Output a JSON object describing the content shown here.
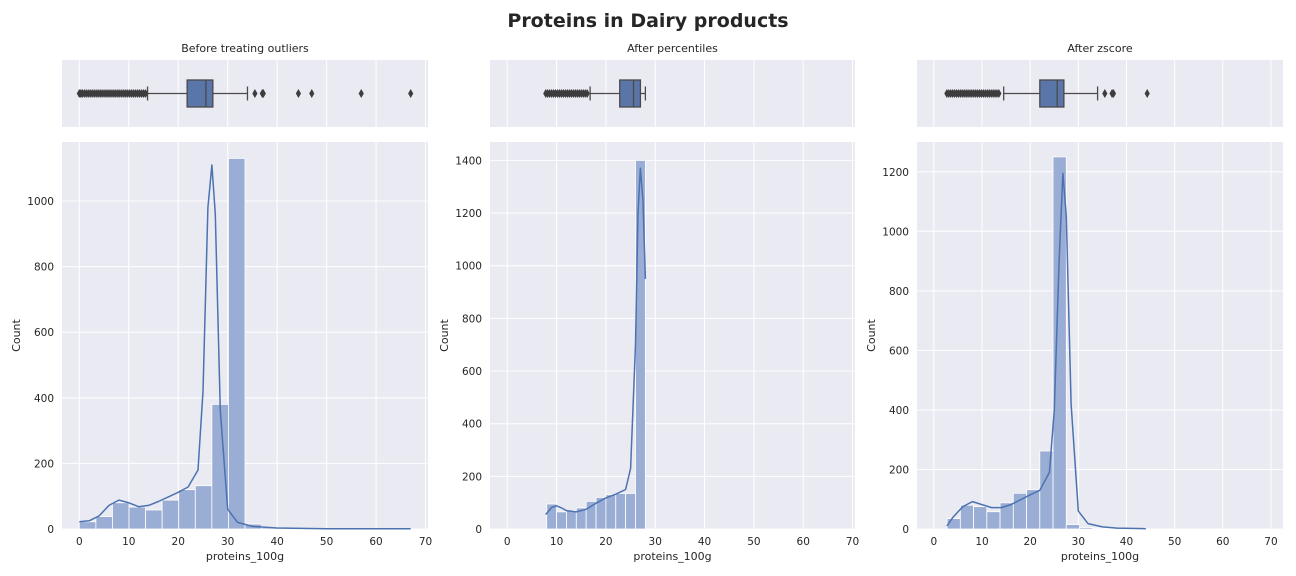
{
  "figure_title": "Proteins in Dairy products",
  "colors": {
    "panel_bg": "#eaeaf2",
    "grid": "#ffffff",
    "bar_fill": "#9aadd4",
    "kde_line": "#4c72b0",
    "box_fill": "#5a76a8",
    "box_line": "#4a4a4a"
  },
  "chart_data": [
    {
      "type": "bar",
      "title": "Before treating outliers",
      "xlabel": "proteins_100g",
      "ylabel": "Count",
      "xlim": [
        -3.5,
        70.5
      ],
      "ylim": [
        0,
        1180
      ],
      "xticks": [
        0,
        10,
        20,
        30,
        40,
        50,
        60,
        70
      ],
      "yticks": [
        0,
        200,
        400,
        600,
        800,
        1000
      ],
      "bin_width": 3.35,
      "bin_start": 0,
      "counts": [
        22,
        38,
        80,
        67,
        58,
        88,
        120,
        132,
        380,
        1130,
        15,
        4,
        2,
        1,
        1,
        1,
        1,
        0,
        1,
        0
      ],
      "kde": [
        [
          0,
          22
        ],
        [
          2,
          25
        ],
        [
          4,
          40
        ],
        [
          6,
          72
        ],
        [
          8,
          88
        ],
        [
          10,
          80
        ],
        [
          12,
          68
        ],
        [
          14,
          72
        ],
        [
          16,
          84
        ],
        [
          18,
          98
        ],
        [
          20,
          112
        ],
        [
          22,
          128
        ],
        [
          24,
          180
        ],
        [
          25,
          420
        ],
        [
          26,
          980
        ],
        [
          26.8,
          1110
        ],
        [
          27.5,
          960
        ],
        [
          28.5,
          360
        ],
        [
          30,
          60
        ],
        [
          32,
          20
        ],
        [
          35,
          8
        ],
        [
          40,
          3
        ],
        [
          50,
          1
        ],
        [
          60,
          1
        ],
        [
          67,
          1
        ]
      ],
      "box": {
        "whisker_low": 13.8,
        "q1": 21.8,
        "median": 25.6,
        "q3": 27.0,
        "whisker_high": 34.0,
        "fliers": [
          0,
          0.3,
          0.6,
          1,
          1.4,
          1.8,
          2.2,
          2.6,
          3,
          3.4,
          3.8,
          4.2,
          4.6,
          5,
          5.4,
          5.8,
          6.2,
          6.6,
          7,
          7.4,
          7.8,
          8.2,
          8.6,
          9,
          9.4,
          9.8,
          10.2,
          10.6,
          11,
          11.4,
          11.8,
          12.2,
          12.6,
          13,
          13.4,
          35.5,
          37,
          37.2,
          44.3,
          47,
          57,
          67
        ]
      }
    },
    {
      "type": "bar",
      "title": "After percentiles",
      "xlabel": "proteins_100g",
      "ylabel": "Count",
      "xlim": [
        -3.5,
        70.5
      ],
      "ylim": [
        0,
        1470
      ],
      "xticks": [
        0,
        10,
        20,
        30,
        40,
        50,
        60,
        70
      ],
      "yticks": [
        0,
        200,
        400,
        600,
        800,
        1000,
        1200,
        1400
      ],
      "bin_width": 2.0,
      "bin_start": 8,
      "counts": [
        95,
        65,
        70,
        80,
        105,
        120,
        130,
        135,
        135,
        1400
      ],
      "kde": [
        [
          7.8,
          55
        ],
        [
          9,
          82
        ],
        [
          10,
          88
        ],
        [
          11,
          80
        ],
        [
          12,
          70
        ],
        [
          14,
          65
        ],
        [
          16,
          75
        ],
        [
          18,
          98
        ],
        [
          20,
          118
        ],
        [
          22,
          132
        ],
        [
          24,
          150
        ],
        [
          25,
          230
        ],
        [
          26,
          700
        ],
        [
          26.5,
          1200
        ],
        [
          27,
          1370
        ],
        [
          27.5,
          1250
        ],
        [
          28,
          950
        ]
      ],
      "box": {
        "whisker_low": 16.8,
        "q1": 22.8,
        "median": 25.6,
        "q3": 27.0,
        "whisker_high": 28.0,
        "fliers": [
          7.8,
          8.2,
          8.6,
          9,
          9.4,
          9.8,
          10.2,
          10.6,
          11,
          11.4,
          11.8,
          12.2,
          12.6,
          13,
          13.4,
          13.8,
          14.2,
          14.6,
          15,
          15.4,
          15.8,
          16.2
        ]
      }
    },
    {
      "type": "bar",
      "title": "After zscore",
      "xlabel": "proteins_100g",
      "ylabel": "Count",
      "xlim": [
        -3.5,
        72.5
      ],
      "ylim": [
        0,
        1300
      ],
      "xticks": [
        0,
        10,
        20,
        30,
        40,
        50,
        60,
        70
      ],
      "yticks": [
        0,
        200,
        400,
        600,
        800,
        1000,
        1200
      ],
      "bin_width": 2.75,
      "bin_start": 2.75,
      "counts": [
        35,
        80,
        75,
        58,
        88,
        120,
        132,
        262,
        1250,
        15,
        5,
        3,
        2,
        1,
        1
      ],
      "kde": [
        [
          2.7,
          10
        ],
        [
          4,
          40
        ],
        [
          6,
          75
        ],
        [
          8,
          92
        ],
        [
          10,
          82
        ],
        [
          12,
          72
        ],
        [
          14,
          72
        ],
        [
          16,
          82
        ],
        [
          18,
          98
        ],
        [
          20,
          115
        ],
        [
          22,
          130
        ],
        [
          24,
          190
        ],
        [
          25,
          400
        ],
        [
          26,
          900
        ],
        [
          26.8,
          1195
        ],
        [
          27.5,
          1050
        ],
        [
          28.5,
          420
        ],
        [
          30,
          60
        ],
        [
          32,
          18
        ],
        [
          35,
          7
        ],
        [
          38,
          3
        ],
        [
          44,
          1
        ]
      ],
      "box": {
        "whisker_low": 14.5,
        "q1": 22.0,
        "median": 25.6,
        "q3": 27.0,
        "whisker_high": 34.0,
        "fliers": [
          2.7,
          3.1,
          3.5,
          3.9,
          4.3,
          4.7,
          5.1,
          5.5,
          5.9,
          6.3,
          6.7,
          7.1,
          7.5,
          7.9,
          8.3,
          8.7,
          9.1,
          9.5,
          9.9,
          10.3,
          10.7,
          11.1,
          11.5,
          11.9,
          12.3,
          12.7,
          13.1,
          13.5,
          35.5,
          37,
          37.3,
          44.3
        ]
      }
    }
  ]
}
